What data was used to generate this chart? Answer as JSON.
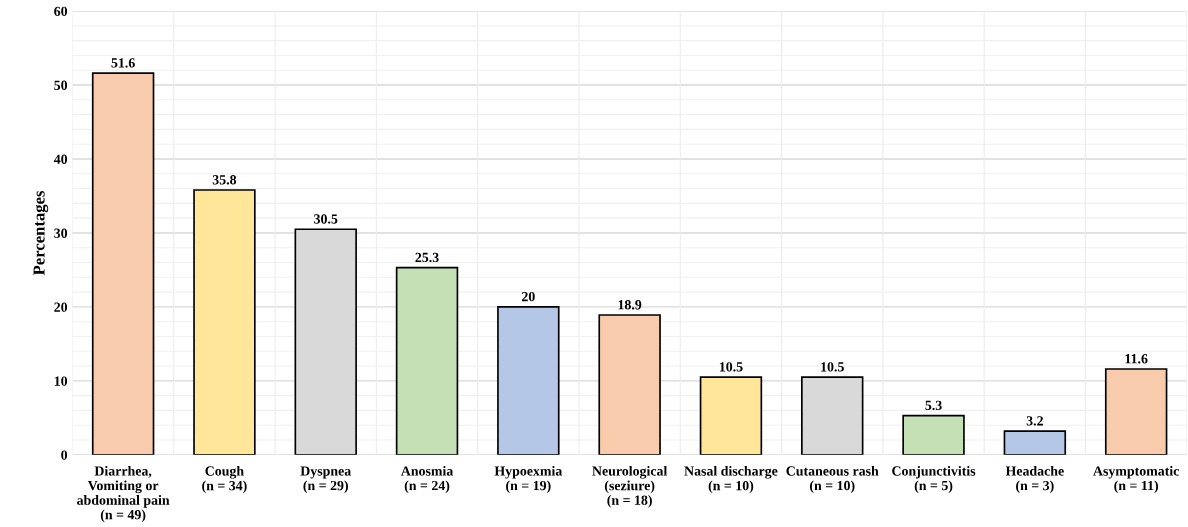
{
  "chart_data": {
    "type": "bar",
    "ylabel": "Percentages",
    "categories": [
      "Diarrhea,\nVomiting or\nabdominal pain\n(n = 49)",
      "Cough\n(n = 34)",
      "Dyspnea\n(n = 29)",
      "Anosmia\n(n = 24)",
      "Hypoexmia\n(n = 19)",
      "Neurological\n(seziure)\n(n = 18)",
      "Nasal discharge\n(n = 10)",
      "Cutaneous rash\n(n = 10)",
      "Conjunctivitis\n(n = 5)",
      "Headache\n(n = 3)",
      "Asymptomatic\n(n = 11)"
    ],
    "values": [
      51.6,
      35.8,
      30.5,
      25.3,
      20,
      18.9,
      10.5,
      10.5,
      5.3,
      3.2,
      11.6
    ],
    "colors": [
      "#f8cbad",
      "#ffe699",
      "#d9d9d9",
      "#c5e0b4",
      "#b4c7e7",
      "#f8cbad",
      "#ffe699",
      "#d9d9d9",
      "#c5e0b4",
      "#b4c7e7",
      "#f8cbad"
    ],
    "ylim": [
      0,
      60
    ],
    "yticks": [
      0,
      10,
      20,
      30,
      40,
      50,
      60
    ],
    "grid": true,
    "data_labels": true
  }
}
